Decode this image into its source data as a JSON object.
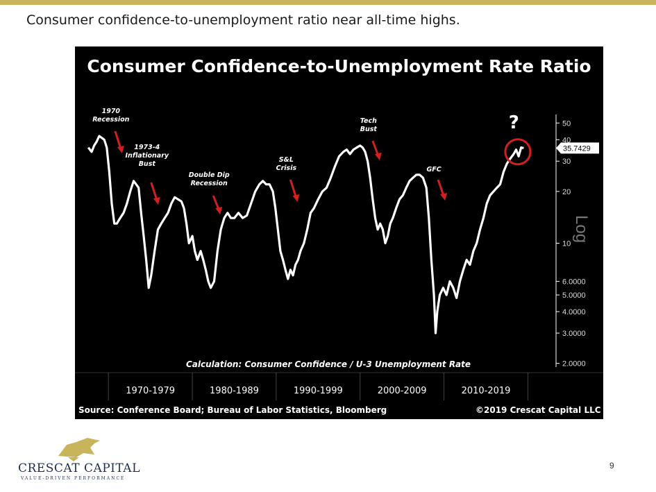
{
  "slide": {
    "title": "Consumer confidence-to-unemployment ratio near all-time highs.",
    "page_number": "9",
    "logo": {
      "name": "CRESCAT CAPITAL",
      "tagline": "VALUE-DRIVEN PERFORMANCE"
    },
    "accent_color": "#c8b45a"
  },
  "chart_data": {
    "type": "line",
    "title": "Consumer Confidence-to-Unemployment Rate Ratio",
    "y_axis_label": "Log",
    "scale": "log",
    "ylim": [
      1.8,
      55
    ],
    "y_ticks": [
      {
        "value": 50,
        "label": "50"
      },
      {
        "value": 40,
        "label": "40"
      },
      {
        "value": 30,
        "label": "30"
      },
      {
        "value": 20,
        "label": "20"
      },
      {
        "value": 10,
        "label": "10"
      },
      {
        "value": 6,
        "label": "6.0000"
      },
      {
        "value": 5,
        "label": "5.0000"
      },
      {
        "value": 4,
        "label": "4.0000"
      },
      {
        "value": 3,
        "label": "3.0000"
      },
      {
        "value": 2,
        "label": "2.0000"
      }
    ],
    "x_range": [
      1967.5,
      2019.8
    ],
    "decades": [
      {
        "label": "1970-1979",
        "start": 1970,
        "end": 1980
      },
      {
        "label": "1980-1989",
        "start": 1980,
        "end": 1990
      },
      {
        "label": "1990-1999",
        "start": 1990,
        "end": 2000
      },
      {
        "label": "2000-2009",
        "start": 2000,
        "end": 2010
      },
      {
        "label": "2010-2019",
        "start": 2010,
        "end": 2020
      }
    ],
    "series": [
      {
        "color": "#ffffff",
        "points": [
          [
            1967.6,
            36
          ],
          [
            1968.0,
            34
          ],
          [
            1968.3,
            37
          ],
          [
            1968.6,
            39
          ],
          [
            1968.9,
            42
          ],
          [
            1969.2,
            41
          ],
          [
            1969.5,
            40
          ],
          [
            1969.8,
            36
          ],
          [
            1970.1,
            26
          ],
          [
            1970.4,
            17
          ],
          [
            1970.7,
            13
          ],
          [
            1971.0,
            13
          ],
          [
            1971.4,
            14
          ],
          [
            1971.8,
            15
          ],
          [
            1972.2,
            17
          ],
          [
            1972.6,
            20
          ],
          [
            1973.0,
            23
          ],
          [
            1973.3,
            22
          ],
          [
            1973.6,
            21
          ],
          [
            1973.9,
            15
          ],
          [
            1974.2,
            11
          ],
          [
            1974.5,
            8
          ],
          [
            1974.8,
            5.5
          ],
          [
            1975.1,
            6.5
          ],
          [
            1975.5,
            9
          ],
          [
            1975.9,
            12
          ],
          [
            1976.3,
            13
          ],
          [
            1976.7,
            14
          ],
          [
            1977.1,
            15
          ],
          [
            1977.5,
            17
          ],
          [
            1977.9,
            18.5
          ],
          [
            1978.3,
            18
          ],
          [
            1978.7,
            17.5
          ],
          [
            1979.0,
            16
          ],
          [
            1979.3,
            13
          ],
          [
            1979.6,
            10
          ],
          [
            1980.0,
            11
          ],
          [
            1980.3,
            9
          ],
          [
            1980.6,
            8
          ],
          [
            1981.0,
            9
          ],
          [
            1981.3,
            8
          ],
          [
            1981.6,
            7
          ],
          [
            1981.9,
            6
          ],
          [
            1982.2,
            5.5
          ],
          [
            1982.6,
            6
          ],
          [
            1983.0,
            9
          ],
          [
            1983.4,
            12
          ],
          [
            1983.8,
            14
          ],
          [
            1984.2,
            15
          ],
          [
            1984.6,
            14
          ],
          [
            1985.0,
            14
          ],
          [
            1985.5,
            15
          ],
          [
            1986.0,
            14
          ],
          [
            1986.5,
            14.5
          ],
          [
            1987.0,
            17
          ],
          [
            1987.5,
            20
          ],
          [
            1988.0,
            22
          ],
          [
            1988.4,
            23
          ],
          [
            1988.8,
            22
          ],
          [
            1989.2,
            22
          ],
          [
            1989.6,
            20
          ],
          [
            1989.9,
            16
          ],
          [
            1990.2,
            12
          ],
          [
            1990.5,
            9
          ],
          [
            1990.8,
            8
          ],
          [
            1991.1,
            7
          ],
          [
            1991.4,
            6.2
          ],
          [
            1991.7,
            7
          ],
          [
            1992.0,
            6.5
          ],
          [
            1992.3,
            7.5
          ],
          [
            1992.6,
            8
          ],
          [
            1992.9,
            9
          ],
          [
            1993.3,
            10
          ],
          [
            1993.7,
            12
          ],
          [
            1994.1,
            15
          ],
          [
            1994.5,
            16
          ],
          [
            1995.0,
            18
          ],
          [
            1995.5,
            20
          ],
          [
            1996.0,
            21
          ],
          [
            1996.5,
            24
          ],
          [
            1997.0,
            28
          ],
          [
            1997.5,
            32
          ],
          [
            1998.0,
            34
          ],
          [
            1998.4,
            35
          ],
          [
            1998.8,
            33
          ],
          [
            1999.2,
            35
          ],
          [
            1999.6,
            36
          ],
          [
            2000.0,
            37
          ],
          [
            2000.3,
            36
          ],
          [
            2000.6,
            34
          ],
          [
            2000.9,
            30
          ],
          [
            2001.2,
            24
          ],
          [
            2001.5,
            18
          ],
          [
            2001.8,
            14
          ],
          [
            2002.1,
            12
          ],
          [
            2002.4,
            13
          ],
          [
            2002.7,
            12
          ],
          [
            2003.0,
            10
          ],
          [
            2003.3,
            11
          ],
          [
            2003.6,
            13
          ],
          [
            2003.9,
            14
          ],
          [
            2004.3,
            16
          ],
          [
            2004.7,
            18
          ],
          [
            2005.1,
            19
          ],
          [
            2005.5,
            21
          ],
          [
            2005.9,
            23
          ],
          [
            2006.3,
            24
          ],
          [
            2006.7,
            25
          ],
          [
            2007.1,
            25
          ],
          [
            2007.5,
            24
          ],
          [
            2007.9,
            21
          ],
          [
            2008.2,
            14
          ],
          [
            2008.5,
            8
          ],
          [
            2008.8,
            5
          ],
          [
            2009.0,
            3
          ],
          [
            2009.2,
            4
          ],
          [
            2009.5,
            5
          ],
          [
            2009.9,
            5.5
          ],
          [
            2010.3,
            5
          ],
          [
            2010.7,
            6
          ],
          [
            2011.1,
            5.5
          ],
          [
            2011.5,
            4.8
          ],
          [
            2011.9,
            6
          ],
          [
            2012.3,
            7
          ],
          [
            2012.7,
            8
          ],
          [
            2013.1,
            7.5
          ],
          [
            2013.5,
            9
          ],
          [
            2013.9,
            10
          ],
          [
            2014.3,
            12
          ],
          [
            2014.7,
            14
          ],
          [
            2015.1,
            17
          ],
          [
            2015.5,
            19
          ],
          [
            2015.9,
            20
          ],
          [
            2016.3,
            21
          ],
          [
            2016.7,
            22
          ],
          [
            2017.1,
            26
          ],
          [
            2017.5,
            29
          ],
          [
            2017.9,
            31
          ],
          [
            2018.3,
            33
          ],
          [
            2018.6,
            35
          ],
          [
            2018.9,
            32
          ],
          [
            2019.2,
            36
          ],
          [
            2019.5,
            35.7429
          ]
        ]
      }
    ],
    "last_value_label": "35.7429",
    "annotations": [
      {
        "text": "1970\nRecession",
        "x": 1970.3
      },
      {
        "text": "1973-4\nInflationary\nBust",
        "x": 1974.6
      },
      {
        "text": "Double Dip\nRecession",
        "x": 1982.0
      },
      {
        "text": "S&L\nCrisis",
        "x": 1991.2
      },
      {
        "text": "Tech\nBust",
        "x": 2001.0
      },
      {
        "text": "GFC",
        "x": 2008.8
      },
      {
        "text": "?",
        "x": 2019.0
      }
    ],
    "calculation_note": "Calculation: Consumer Confidence / U-3 Unemployment Rate",
    "source": "Source: Conference Board; Bureau of Labor Statistics, Bloomberg",
    "copyright": "©2019 Crescat Capital LLC"
  }
}
